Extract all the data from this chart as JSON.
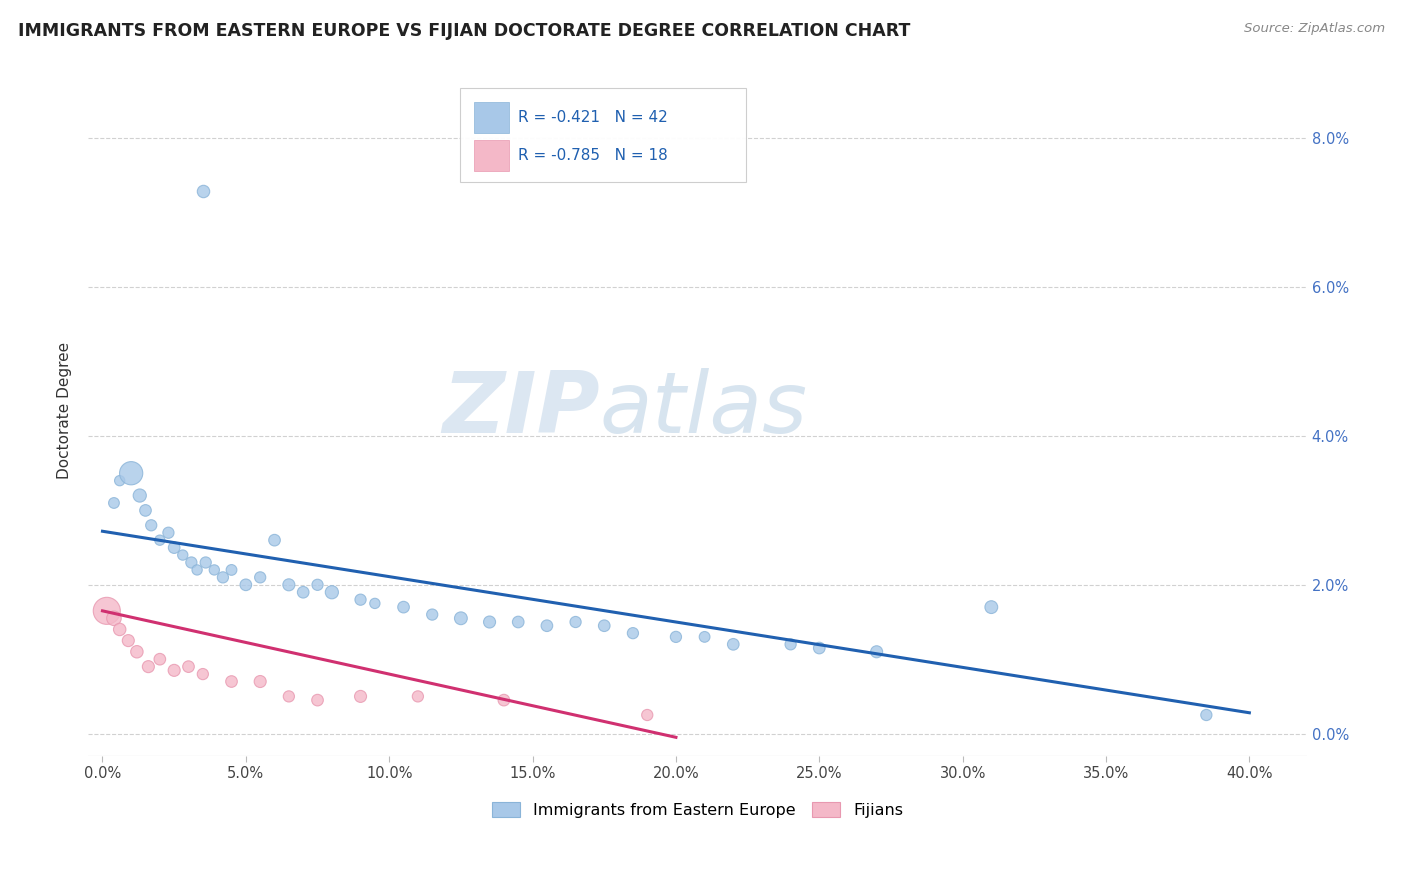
{
  "title": "IMMIGRANTS FROM EASTERN EUROPE VS FIJIAN DOCTORATE DEGREE CORRELATION CHART",
  "source": "Source: ZipAtlas.com",
  "xlabel_ticks": [
    "0.0%",
    "5.0%",
    "10.0%",
    "15.0%",
    "20.0%",
    "25.0%",
    "30.0%",
    "35.0%",
    "40.0%"
  ],
  "xlabel_vals": [
    0.0,
    5.0,
    10.0,
    15.0,
    20.0,
    25.0,
    30.0,
    35.0,
    40.0
  ],
  "ylabel_ticks": [
    "0.0%",
    "2.0%",
    "4.0%",
    "6.0%",
    "8.0%"
  ],
  "ylabel_vals": [
    0.0,
    2.0,
    4.0,
    6.0,
    8.0
  ],
  "ylabel_label": "Doctorate Degree",
  "blue_R": "-0.421",
  "blue_N": "42",
  "pink_R": "-0.785",
  "pink_N": "18",
  "blue_label": "Immigrants from Eastern Europe",
  "pink_label": "Fijians",
  "blue_color": "#a8c8e8",
  "blue_edge_color": "#8ab4d8",
  "pink_color": "#f4b8c8",
  "pink_edge_color": "#e898b0",
  "blue_line_color": "#2060b0",
  "pink_line_color": "#d03070",
  "watermark_zip": "ZIP",
  "watermark_atlas": "atlas",
  "xlim": [
    -0.5,
    42
  ],
  "ylim": [
    -0.3,
    9.0
  ],
  "blue_scatter_x": [
    0.4,
    0.6,
    1.0,
    1.3,
    1.5,
    1.7,
    2.0,
    2.3,
    2.5,
    2.8,
    3.1,
    3.3,
    3.6,
    3.9,
    4.2,
    4.5,
    5.0,
    5.5,
    6.0,
    6.5,
    7.0,
    7.5,
    8.0,
    9.0,
    9.5,
    10.5,
    11.5,
    12.5,
    13.5,
    14.5,
    15.5,
    16.5,
    17.5,
    18.5,
    20.0,
    21.0,
    22.0,
    24.0,
    25.0,
    27.0,
    31.0,
    38.5
  ],
  "blue_scatter_y": [
    3.1,
    3.4,
    3.5,
    3.2,
    3.0,
    2.8,
    2.6,
    2.7,
    2.5,
    2.4,
    2.3,
    2.2,
    2.3,
    2.2,
    2.1,
    2.2,
    2.0,
    2.1,
    2.6,
    2.0,
    1.9,
    2.0,
    1.9,
    1.8,
    1.75,
    1.7,
    1.6,
    1.55,
    1.5,
    1.5,
    1.45,
    1.5,
    1.45,
    1.35,
    1.3,
    1.3,
    1.2,
    1.2,
    1.15,
    1.1,
    1.7,
    0.25
  ],
  "blue_scatter_sizes": [
    60,
    55,
    280,
    90,
    70,
    65,
    55,
    65,
    70,
    55,
    65,
    55,
    65,
    55,
    65,
    60,
    70,
    65,
    70,
    75,
    70,
    65,
    90,
    65,
    55,
    70,
    65,
    85,
    75,
    70,
    70,
    65,
    70,
    65,
    65,
    60,
    70,
    65,
    70,
    75,
    85,
    65
  ],
  "pink_scatter_x": [
    0.15,
    0.4,
    0.6,
    0.9,
    1.2,
    1.6,
    2.0,
    2.5,
    3.0,
    3.5,
    4.5,
    5.5,
    6.5,
    7.5,
    9.0,
    11.0,
    14.0,
    19.0
  ],
  "pink_scatter_y": [
    1.65,
    1.55,
    1.4,
    1.25,
    1.1,
    0.9,
    1.0,
    0.85,
    0.9,
    0.8,
    0.7,
    0.7,
    0.5,
    0.45,
    0.5,
    0.5,
    0.45,
    0.25
  ],
  "pink_scatter_sizes": [
    380,
    110,
    80,
    75,
    80,
    75,
    70,
    75,
    70,
    65,
    70,
    75,
    65,
    70,
    75,
    65,
    70,
    65
  ],
  "blue_outlier_x": 3.5,
  "blue_outlier_y": 7.3,
  "blue_outlier_size": 80,
  "blue_line_x0": 0.0,
  "blue_line_y0": 2.72,
  "blue_line_x1": 40.0,
  "blue_line_y1": 0.28,
  "pink_line_x0": 0.0,
  "pink_line_y0": 1.65,
  "pink_line_x1": 20.0,
  "pink_line_y1": -0.05
}
